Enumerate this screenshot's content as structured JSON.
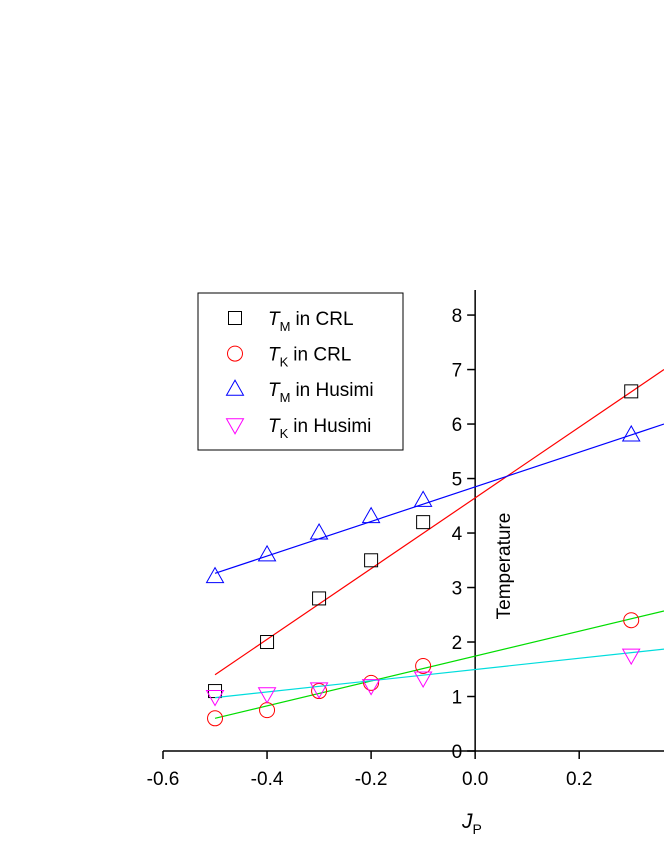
{
  "chart_data": {
    "type": "scatter",
    "x_label": "J",
    "x_label_sub": "P",
    "y_label": "Temperature",
    "x": [
      -0.5,
      -0.4,
      -0.3,
      -0.2,
      -0.1,
      0.3
    ],
    "xlim": [
      -0.6,
      0.363
    ],
    "ylim": [
      0,
      8.46
    ],
    "xticks": [
      -0.6,
      -0.4,
      -0.2,
      {
        "value": 0,
        "label": "0.0"
      },
      0.2
    ],
    "yticks": [
      0,
      1,
      2,
      3,
      4,
      5,
      6,
      7,
      8
    ],
    "legend": "upper left",
    "series": [
      {
        "symbol": "T",
        "sub": "M",
        "name": "in CRL",
        "color": "#000000",
        "marker": "square",
        "values": [
          1.1,
          2.0,
          2.8,
          3.5,
          4.2,
          6.6
        ],
        "fit": {
          "color": "#ff0000",
          "x": [
            -0.5,
            0.363
          ],
          "values": [
            1.4,
            7.0
          ]
        }
      },
      {
        "symbol": "T",
        "sub": "K",
        "name": "in CRL",
        "color": "#ff0000",
        "marker": "circle",
        "values": [
          0.6,
          0.75,
          1.1,
          1.25,
          1.56,
          2.4
        ],
        "fit": {
          "color": "#00dd00",
          "x": [
            -0.5,
            0.363
          ],
          "values": [
            0.6,
            2.57
          ]
        }
      },
      {
        "symbol": "T",
        "sub": "M",
        "name": "in Husimi",
        "color": "#0000ff",
        "marker": "triangle-up",
        "values": [
          3.2,
          3.6,
          4.0,
          4.3,
          4.6,
          5.8
        ],
        "fit": {
          "color": "#0000ff",
          "x": [
            -0.5,
            0.363
          ],
          "values": [
            3.26,
            6.0
          ]
        }
      },
      {
        "symbol": "T",
        "sub": "K",
        "name": "in Husimi",
        "color": "#ff00ff",
        "marker": "triangle-down",
        "values": [
          1.0,
          1.05,
          1.14,
          1.2,
          1.34,
          1.76
        ],
        "fit": {
          "color": "#00dddd",
          "x": [
            -0.5,
            0.363
          ],
          "values": [
            0.98,
            1.87
          ]
        }
      }
    ]
  }
}
